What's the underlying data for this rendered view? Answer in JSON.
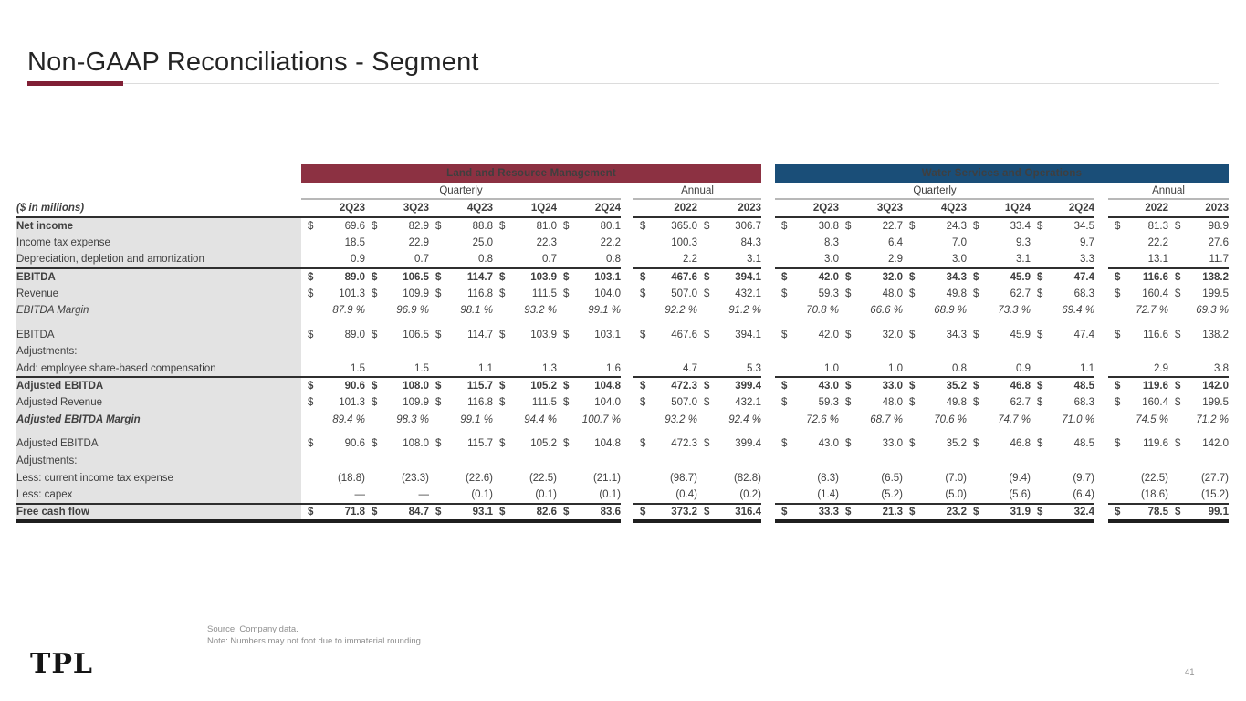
{
  "slide": {
    "title": "Non-GAAP Reconciliations - Segment",
    "page_number": "41",
    "logo_text": "TPL",
    "footnotes": [
      "Source: Company data.",
      "Note: Numbers may not foot due to immaterial rounding."
    ]
  },
  "colors": {
    "land_segment_bg": "#8c3142",
    "water_segment_bg": "#1a4e78",
    "title_accent": "#801f35",
    "label_column_bg": "#e3e3e3",
    "muted_text": "#9b9b9b"
  },
  "table": {
    "units_label": "($ in millions)",
    "segments": [
      {
        "name": "Land and Resource Management"
      },
      {
        "name": "Water Services and Operations"
      }
    ],
    "quarterly_label": "Quarterly",
    "annual_label": "Annual",
    "quarter_columns": [
      "2Q23",
      "3Q23",
      "4Q23",
      "1Q24",
      "2Q24"
    ],
    "annual_columns": [
      "2022",
      "2023"
    ],
    "rows": [
      {
        "label": "Net income",
        "label_bold": true,
        "dollar": true,
        "values": [
          "69.6",
          "82.9",
          "88.8",
          "81.0",
          "80.1",
          "365.0",
          "306.7",
          "30.8",
          "22.7",
          "24.3",
          "33.4",
          "34.5",
          "81.3",
          "98.9"
        ]
      },
      {
        "label": "Income tax expense",
        "values": [
          "18.5",
          "22.9",
          "25.0",
          "22.3",
          "22.2",
          "100.3",
          "84.3",
          "8.3",
          "6.4",
          "7.0",
          "9.3",
          "9.7",
          "22.2",
          "27.6"
        ]
      },
      {
        "label": "Depreciation, depletion and amortization",
        "rule_below": true,
        "values": [
          "0.9",
          "0.7",
          "0.8",
          "0.7",
          "0.8",
          "2.2",
          "3.1",
          "3.0",
          "2.9",
          "3.0",
          "3.1",
          "3.3",
          "13.1",
          "11.7"
        ]
      },
      {
        "label": "EBITDA",
        "label_bold": true,
        "dollar": true,
        "values_bold": true,
        "values": [
          "89.0",
          "106.5",
          "114.7",
          "103.9",
          "103.1",
          "467.6",
          "394.1",
          "42.0",
          "32.0",
          "34.3",
          "45.9",
          "47.4",
          "116.6",
          "138.2"
        ]
      },
      {
        "label": "Revenue",
        "dollar": true,
        "values": [
          "101.3",
          "109.9",
          "116.8",
          "111.5",
          "104.0",
          "507.0",
          "432.1",
          "59.3",
          "48.0",
          "49.8",
          "62.7",
          "68.3",
          "160.4",
          "199.5"
        ]
      },
      {
        "label": "EBITDA Margin",
        "label_italic": true,
        "percent": true,
        "values": [
          "87.9 %",
          "96.9 %",
          "98.1 %",
          "93.2 %",
          "99.1 %",
          "92.2 %",
          "91.2 %",
          "70.8 %",
          "66.6 %",
          "68.9 %",
          "73.3 %",
          "69.4 %",
          "72.7 %",
          "69.3 %"
        ]
      },
      {
        "type": "gap"
      },
      {
        "label": "EBITDA",
        "dollar": true,
        "values": [
          "89.0",
          "106.5",
          "114.7",
          "103.9",
          "103.1",
          "467.6",
          "394.1",
          "42.0",
          "32.0",
          "34.3",
          "45.9",
          "47.4",
          "116.6",
          "138.2"
        ]
      },
      {
        "label": "Adjustments:",
        "values": [
          "",
          "",
          "",
          "",
          "",
          "",
          "",
          "",
          "",
          "",
          "",
          "",
          "",
          ""
        ]
      },
      {
        "label": "Add: employee share-based compensation",
        "indent": true,
        "rule_below": true,
        "values": [
          "1.5",
          "1.5",
          "1.1",
          "1.3",
          "1.6",
          "4.7",
          "5.3",
          "1.0",
          "1.0",
          "0.8",
          "0.9",
          "1.1",
          "2.9",
          "3.8"
        ]
      },
      {
        "label": "Adjusted EBITDA",
        "label_bold": true,
        "dollar": true,
        "values_bold": true,
        "values": [
          "90.6",
          "108.0",
          "115.7",
          "105.2",
          "104.8",
          "472.3",
          "399.4",
          "43.0",
          "33.0",
          "35.2",
          "46.8",
          "48.5",
          "119.6",
          "142.0"
        ]
      },
      {
        "label": "Adjusted Revenue",
        "dollar": true,
        "values": [
          "101.3",
          "109.9",
          "116.8",
          "111.5",
          "104.0",
          "507.0",
          "432.1",
          "59.3",
          "48.0",
          "49.8",
          "62.7",
          "68.3",
          "160.4",
          "199.5"
        ]
      },
      {
        "label": "Adjusted EBITDA Margin",
        "label_bold": true,
        "label_italic": true,
        "percent": true,
        "values": [
          "89.4 %",
          "98.3 %",
          "99.1 %",
          "94.4 %",
          "100.7 %",
          "93.2 %",
          "92.4 %",
          "72.6 %",
          "68.7 %",
          "70.6 %",
          "74.7 %",
          "71.0 %",
          "74.5 %",
          "71.2 %"
        ]
      },
      {
        "type": "gap"
      },
      {
        "label": "Adjusted EBITDA",
        "dollar": true,
        "values": [
          "90.6",
          "108.0",
          "115.7",
          "105.2",
          "104.8",
          "472.3",
          "399.4",
          "43.0",
          "33.0",
          "35.2",
          "46.8",
          "48.5",
          "119.6",
          "142.0"
        ]
      },
      {
        "label": "Adjustments:",
        "values": [
          "",
          "",
          "",
          "",
          "",
          "",
          "",
          "",
          "",
          "",
          "",
          "",
          "",
          ""
        ]
      },
      {
        "label": "Less: current income tax expense",
        "indent": true,
        "values": [
          "(18.8)",
          "(23.3)",
          "(22.6)",
          "(22.5)",
          "(21.1)",
          "(98.7)",
          "(82.8)",
          "(8.3)",
          "(6.5)",
          "(7.0)",
          "(9.4)",
          "(9.7)",
          "(22.5)",
          "(27.7)"
        ]
      },
      {
        "label": "Less: capex",
        "indent": true,
        "rule_below": true,
        "values": [
          "—",
          "—",
          "(0.1)",
          "(0.1)",
          "(0.1)",
          "(0.4)",
          "(0.2)",
          "(1.4)",
          "(5.2)",
          "(5.0)",
          "(5.6)",
          "(6.4)",
          "(18.6)",
          "(15.2)"
        ]
      },
      {
        "label": "Free cash flow",
        "label_bold": true,
        "dollar": true,
        "values_bold": true,
        "double_rule": true,
        "values": [
          "71.8",
          "84.7",
          "93.1",
          "82.6",
          "83.6",
          "373.2",
          "316.4",
          "33.3",
          "21.3",
          "23.2",
          "31.9",
          "32.4",
          "78.5",
          "99.1"
        ]
      }
    ]
  }
}
